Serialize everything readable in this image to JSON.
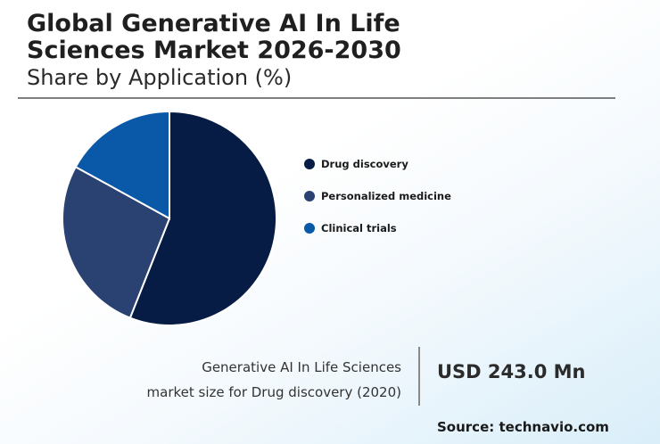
{
  "header": {
    "title_line1": "Global Generative AI In Life",
    "title_line2": "Sciences Market 2026-2030",
    "subtitle": "Share by Application (%)"
  },
  "chart_data": {
    "type": "pie",
    "categories": [
      "Drug discovery",
      "Personalized medicine",
      "Clinical trials"
    ],
    "values": [
      56,
      27,
      17
    ],
    "colors": [
      "#071c45",
      "#2a4272",
      "#0a58a8"
    ],
    "legend": "right"
  },
  "footer": {
    "caption_line1": "Generative AI In Life Sciences",
    "caption_line2": "market size for Drug discovery (2020)",
    "value": "USD 243.0 Mn",
    "source": "Source: technavio.com"
  }
}
